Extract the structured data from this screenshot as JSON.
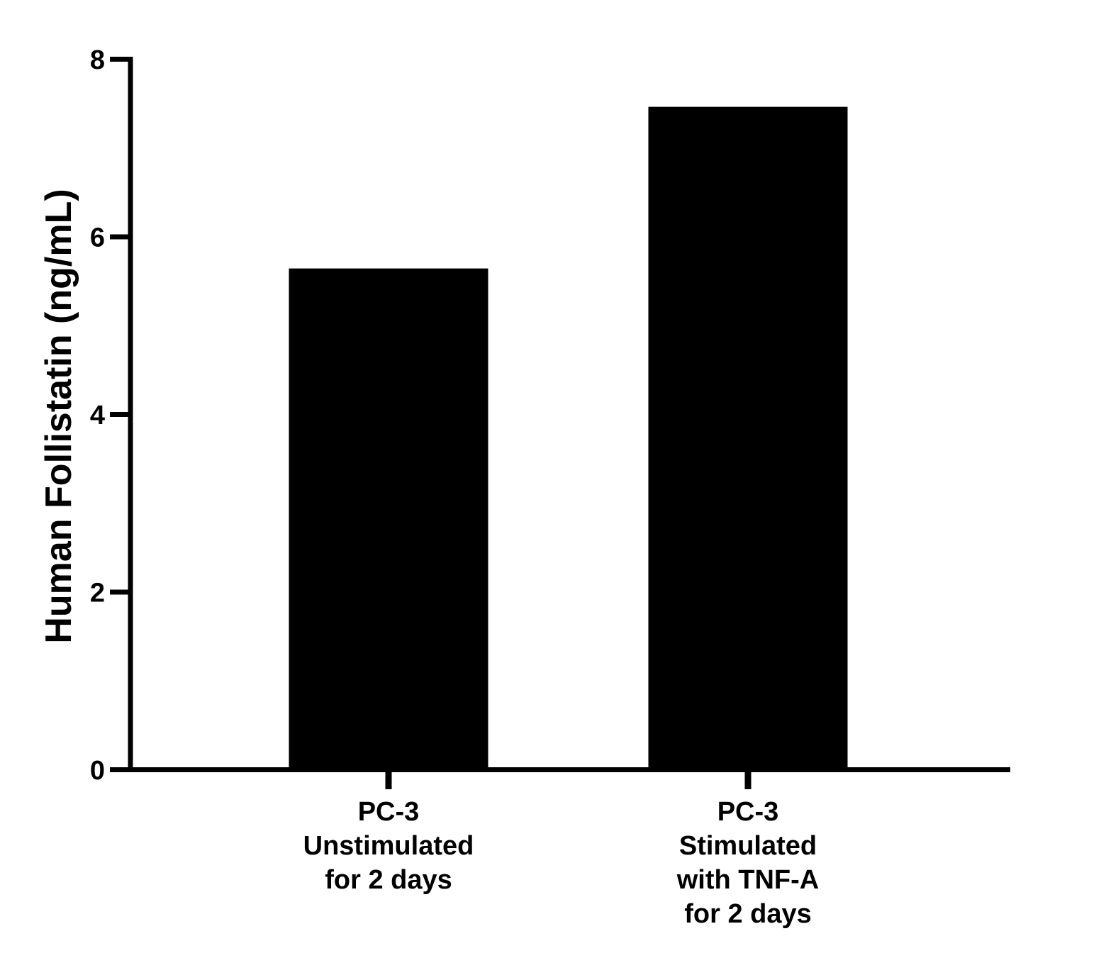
{
  "chart_data": {
    "type": "bar",
    "title": "",
    "xlabel": "",
    "ylabel": "Human Follistatin (ng/mL)",
    "ylim": [
      0,
      8
    ],
    "yticks": [
      0,
      2,
      4,
      6,
      8
    ],
    "grid": false,
    "legend": null,
    "categories": [
      [
        "PC-3",
        "Unstimulated",
        "for 2 days"
      ],
      [
        "PC-3",
        "Stimulated",
        "with TNF-A",
        "for 2 days"
      ]
    ],
    "category_labels": [
      "PC-3 Unstimulated for 2 days",
      "PC-3 Stimulated with TNF-A for 2 days"
    ],
    "values": [
      5.64,
      7.46
    ],
    "bar_color": "#000000"
  },
  "colors": {
    "bar": "#000000",
    "axis": "#000000",
    "background": "#ffffff"
  }
}
